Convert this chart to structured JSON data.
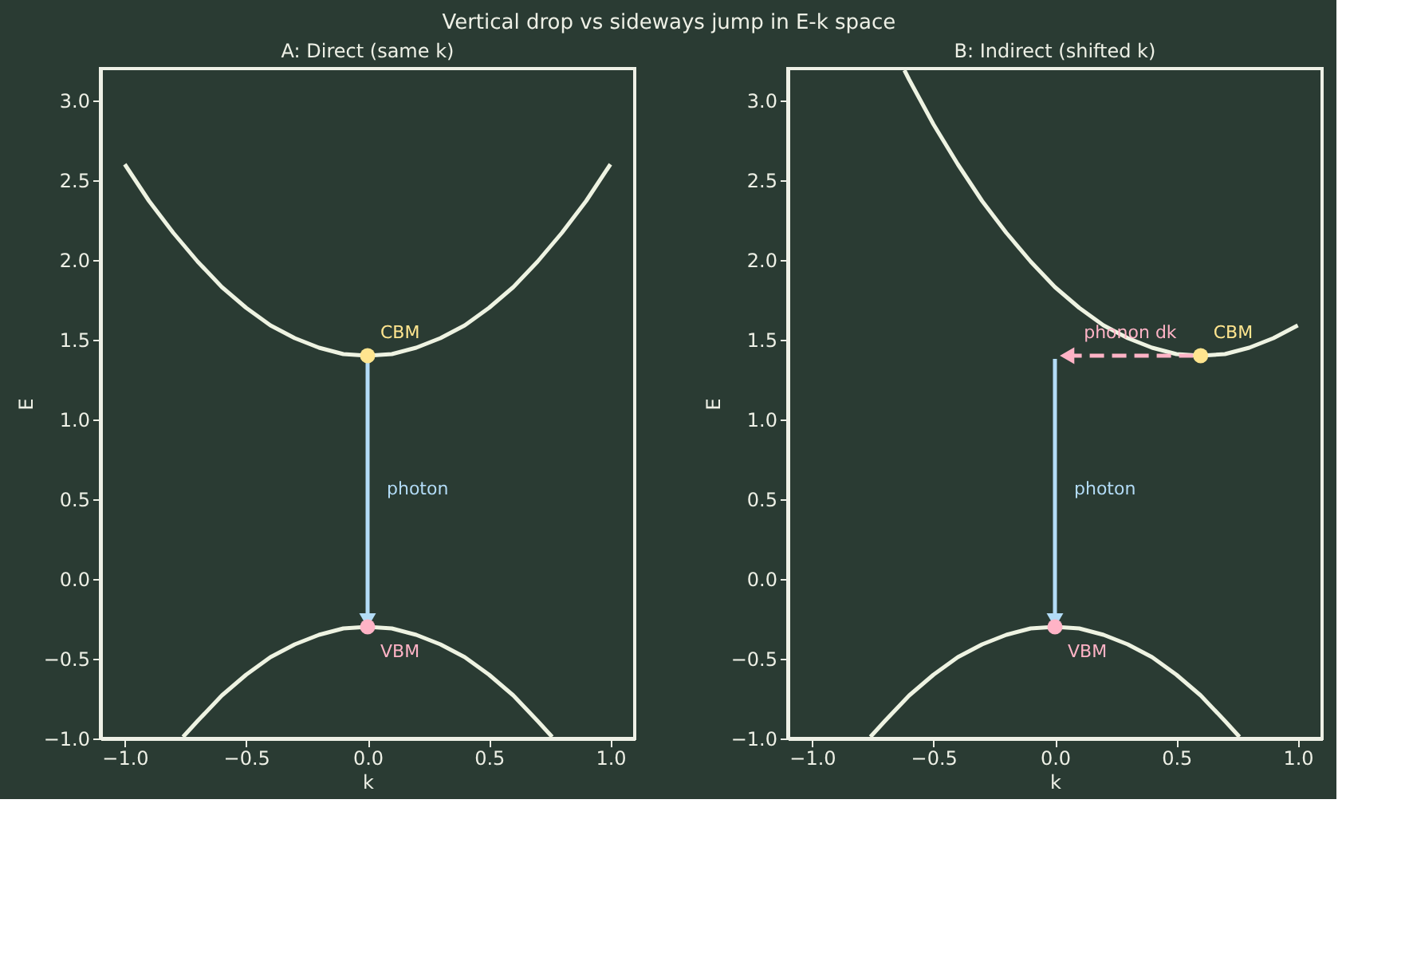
{
  "chart_data": [
    {
      "type": "line",
      "title": "Vertical drop vs sideways jump in E-k space",
      "subtitle": "A: Direct (same k)",
      "xlabel": "k",
      "ylabel": "E",
      "xlim": [
        -1.1,
        1.1
      ],
      "ylim": [
        -1,
        3.2
      ],
      "xticks": [
        {
          "value": -1,
          "label": "−1.0"
        },
        {
          "value": -0.5,
          "label": "−0.5"
        },
        {
          "value": 0,
          "label": "0.0"
        },
        {
          "value": 0.5,
          "label": "0.5"
        },
        {
          "value": 1,
          "label": "1.0"
        }
      ],
      "yticks": [
        {
          "value": -1,
          "label": "−1.0"
        },
        {
          "value": -0.5,
          "label": "−0.5"
        },
        {
          "value": 0,
          "label": "0.0"
        },
        {
          "value": 0.5,
          "label": "0.5"
        },
        {
          "value": 1,
          "label": "1.0"
        },
        {
          "value": 1.5,
          "label": "1.5"
        },
        {
          "value": 2,
          "label": "2.0"
        },
        {
          "value": 2.5,
          "label": "2.5"
        },
        {
          "value": 3,
          "label": "3.0"
        }
      ],
      "grid": false,
      "series": [
        {
          "type": "line",
          "color": "#eef3e2",
          "x": [
            -1,
            -0.9,
            -0.8,
            -0.7,
            -0.6,
            -0.5,
            -0.4,
            -0.3,
            -0.2,
            -0.1,
            0,
            0.1,
            0.2,
            0.3,
            0.4,
            0.5,
            0.6,
            0.7,
            0.8,
            0.9,
            1
          ],
          "values": [
            2.6,
            2.37,
            2.17,
            1.99,
            1.83,
            1.7,
            1.59,
            1.51,
            1.45,
            1.41,
            1.4,
            1.41,
            1.45,
            1.51,
            1.59,
            1.7,
            1.83,
            1.99,
            2.17,
            2.37,
            2.6
          ]
        },
        {
          "type": "line",
          "color": "#eef3e2",
          "x": [
            -0.76,
            -0.7,
            -0.6,
            -0.5,
            -0.4,
            -0.3,
            -0.2,
            -0.1,
            0,
            0.1,
            0.2,
            0.3,
            0.4,
            0.5,
            0.6,
            0.7,
            0.76
          ],
          "values": [
            -0.99,
            -0.89,
            -0.73,
            -0.6,
            -0.49,
            -0.41,
            -0.35,
            -0.31,
            -0.3,
            -0.31,
            -0.35,
            -0.41,
            -0.49,
            -0.6,
            -0.73,
            -0.89,
            -0.99
          ]
        },
        {
          "type": "line",
          "color": "#b3dcf7",
          "marker": "triangle",
          "x": [
            0,
            0
          ],
          "values": [
            1.38,
            -0.26
          ]
        },
        {
          "type": "scatter",
          "color": "#ffe58f",
          "marker": "circle",
          "x": [
            0
          ],
          "values": [
            1.4
          ]
        },
        {
          "type": "scatter",
          "color": "#ffb3c6",
          "marker": "circle",
          "x": [
            0
          ],
          "values": [
            -0.3
          ]
        }
      ],
      "annotations": [
        {
          "text": "CBM",
          "x": 0,
          "y": 1.4
        },
        {
          "text": "VBM",
          "x": 0,
          "y": -0.3
        },
        {
          "text": "photon",
          "x": 0,
          "y": 0.56
        }
      ]
    },
    {
      "type": "line",
      "subtitle": "B: Indirect (shifted k)",
      "xlabel": "k",
      "ylabel": "E",
      "xlim": [
        -1.1,
        1.1
      ],
      "ylim": [
        -1,
        3.2
      ],
      "xticks": [
        {
          "value": -1,
          "label": "−1.0"
        },
        {
          "value": -0.5,
          "label": "−0.5"
        },
        {
          "value": 0,
          "label": "0.0"
        },
        {
          "value": 0.5,
          "label": "0.5"
        },
        {
          "value": 1,
          "label": "1.0"
        }
      ],
      "yticks": [
        {
          "value": -1,
          "label": "−1.0"
        },
        {
          "value": -0.5,
          "label": "−0.5"
        },
        {
          "value": 0,
          "label": "0.0"
        },
        {
          "value": 0.5,
          "label": "0.5"
        },
        {
          "value": 1,
          "label": "1.0"
        },
        {
          "value": 1.5,
          "label": "1.5"
        },
        {
          "value": 2,
          "label": "2.0"
        },
        {
          "value": 2.5,
          "label": "2.5"
        },
        {
          "value": 3,
          "label": "3.0"
        }
      ],
      "grid": false,
      "series": [
        {
          "type": "line",
          "color": "#eef3e2",
          "x": [
            -0.62,
            -0.6,
            -0.5,
            -0.4,
            -0.3,
            -0.2,
            -0.1,
            0,
            0.1,
            0.2,
            0.3,
            0.4,
            0.5,
            0.6,
            0.7,
            0.8,
            0.9,
            1
          ],
          "values": [
            3.19,
            3.13,
            2.85,
            2.6,
            2.37,
            2.17,
            1.99,
            1.83,
            1.7,
            1.59,
            1.51,
            1.45,
            1.41,
            1.4,
            1.41,
            1.45,
            1.51,
            1.59
          ]
        },
        {
          "type": "line",
          "color": "#eef3e2",
          "x": [
            -0.76,
            -0.7,
            -0.6,
            -0.5,
            -0.4,
            -0.3,
            -0.2,
            -0.1,
            0,
            0.1,
            0.2,
            0.3,
            0.4,
            0.5,
            0.6,
            0.7,
            0.76
          ],
          "values": [
            -0.99,
            -0.89,
            -0.73,
            -0.6,
            -0.49,
            -0.41,
            -0.35,
            -0.31,
            -0.3,
            -0.31,
            -0.35,
            -0.41,
            -0.49,
            -0.6,
            -0.73,
            -0.89,
            -0.99
          ]
        },
        {
          "type": "line",
          "color": "#b3dcf7",
          "marker": "triangle",
          "x": [
            0,
            0
          ],
          "values": [
            1.38,
            -0.26
          ]
        },
        {
          "type": "line",
          "color": "#ffb3c6",
          "marker": "triangle",
          "line_style": "dashed",
          "x": [
            0.57,
            0.05
          ],
          "values": [
            1.4,
            1.4
          ]
        },
        {
          "type": "scatter",
          "color": "#ffe58f",
          "marker": "circle",
          "x": [
            0.6
          ],
          "values": [
            1.4
          ]
        },
        {
          "type": "scatter",
          "color": "#ffb3c6",
          "marker": "circle",
          "x": [
            0
          ],
          "values": [
            -0.3
          ]
        }
      ],
      "annotations": [
        {
          "text": "CBM",
          "x": 0.6,
          "y": 1.4
        },
        {
          "text": "VBM",
          "x": 0,
          "y": -0.3
        },
        {
          "text": "phonon dk",
          "x": 0.31,
          "y": 1.4
        },
        {
          "text": "photon",
          "x": 0,
          "y": 0.56
        }
      ]
    }
  ]
}
